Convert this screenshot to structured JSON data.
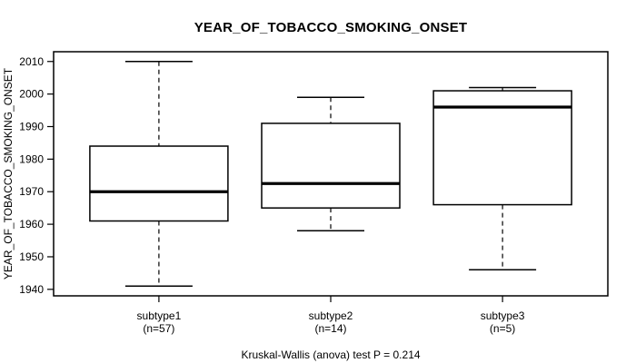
{
  "chart_data": {
    "type": "boxplot",
    "title": "YEAR_OF_TOBACCO_SMOKING_ONSET",
    "ylabel": "YEAR_OF_TOBACCO_SMOKING_ONSET",
    "xlabel": "",
    "caption": "Kruskal-Wallis (anova) test P = 0.214",
    "p_value": 0.214,
    "ylim": [
      1938,
      2013
    ],
    "yticks": [
      1940,
      1950,
      1960,
      1970,
      1980,
      1990,
      2000,
      2010
    ],
    "grid": false,
    "legend": null,
    "groups": [
      {
        "label": "subtype1",
        "sublabel": "(n=57)",
        "n": 57,
        "whisker_low": 1941,
        "q1": 1961,
        "median": 1970,
        "q3": 1984,
        "whisker_high": 2010
      },
      {
        "label": "subtype2",
        "sublabel": "(n=14)",
        "n": 14,
        "whisker_low": 1958,
        "q1": 1965,
        "median": 1972.5,
        "q3": 1991,
        "whisker_high": 1999
      },
      {
        "label": "subtype3",
        "sublabel": "(n=5)",
        "n": 5,
        "whisker_low": 1946,
        "q1": 1966,
        "median": 1996,
        "q3": 2001,
        "whisker_high": 2002
      }
    ],
    "colors": {
      "box_fill": "#ffffff",
      "line": "#000000",
      "background": "#ffffff"
    }
  }
}
